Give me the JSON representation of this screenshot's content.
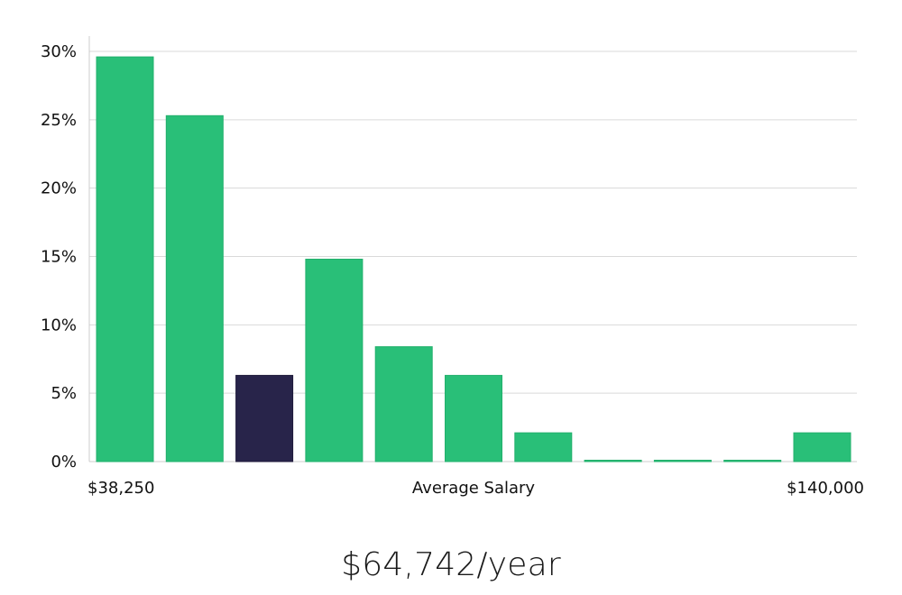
{
  "chart_data": {
    "type": "bar",
    "values": [
      29.6,
      25.3,
      6.3,
      14.8,
      8.4,
      6.3,
      2.1,
      0,
      0,
      0,
      2.1
    ],
    "highlight_index": 2,
    "ylim": [
      0,
      30
    ],
    "yticks": [
      "0%",
      "5%",
      "10%",
      "15%",
      "20%",
      "25%",
      "30%"
    ],
    "ytick_values": [
      0,
      5,
      10,
      15,
      20,
      25,
      30
    ],
    "x_min_label": "$38,250",
    "xlabel": "Average Salary",
    "x_max_label": "$140,000",
    "grid": true,
    "colors": {
      "bar": "#29bf78",
      "highlight": "#28244a",
      "grid": "#d9d9d9",
      "axis": "#cccccc"
    }
  },
  "headline": "$64,742/year"
}
